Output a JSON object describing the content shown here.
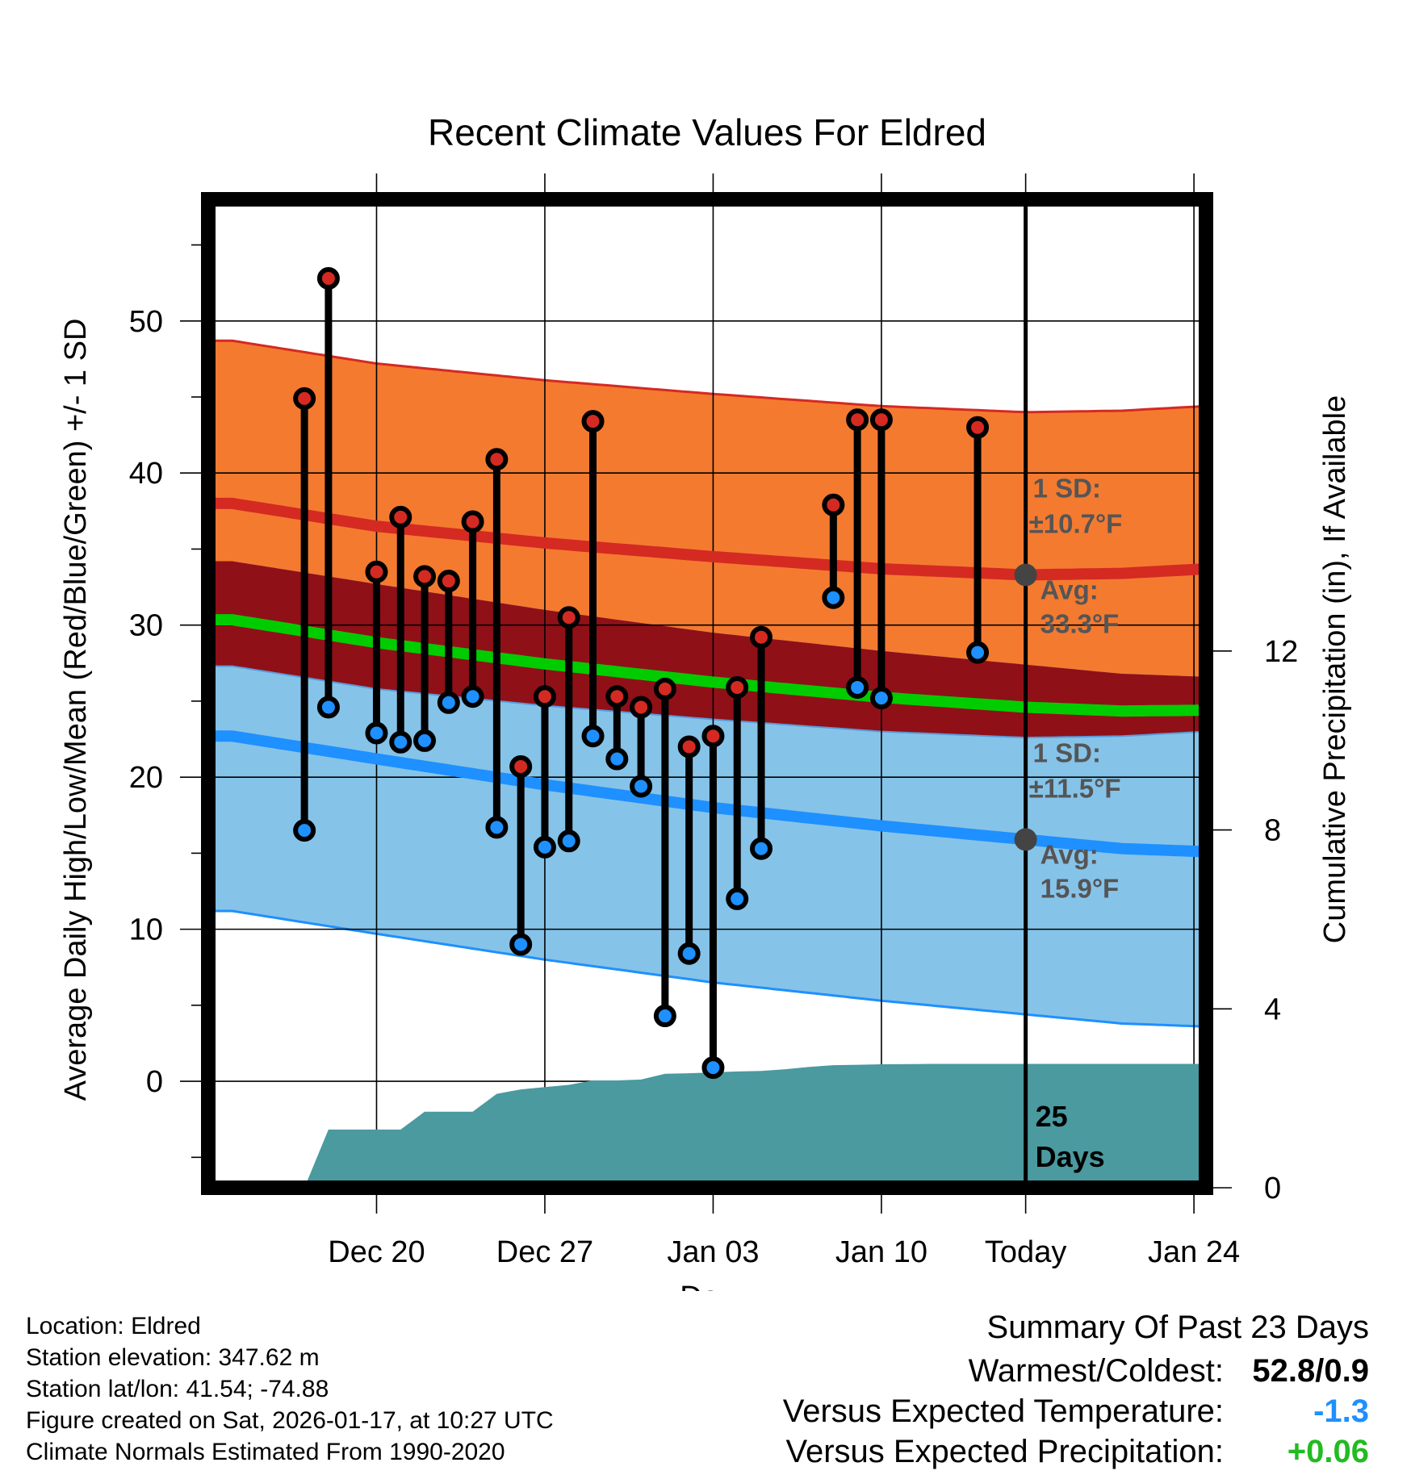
{
  "chart_data": {
    "type": "line",
    "title": "Recent Climate Values For Eldred",
    "xlabel": "Day",
    "ylabel": "Average Daily High/Low/Mean (Red/Blue/Green) +/- 1 SD",
    "ylabel_right": "Cumulative Precipitation (in), If Available",
    "ylim": [
      -7,
      58
    ],
    "ylim_right": [
      0,
      22.1
    ],
    "x_range": [
      -4,
      37.5
    ],
    "today_x": 30,
    "x_tick_positions": [
      3,
      10,
      17,
      24,
      30,
      37
    ],
    "x_tick_labels": [
      "Dec 20",
      "Dec 27",
      "Jan 03",
      "Jan 10",
      "Today",
      "Jan 24"
    ],
    "y_ticks": [
      0,
      10,
      20,
      30,
      40,
      50
    ],
    "y_ticks_right": [
      0,
      4,
      8,
      12
    ],
    "grid": true,
    "colors": {
      "high_band": "#f47a30",
      "high_line": "#d42a22",
      "low_band": "#86c3e8",
      "low_line": "#1e90ff",
      "overlap_band": "#901018",
      "mean_line": "#00cc00",
      "precip": "#4a9aa0",
      "high_dot": "#d42a22",
      "low_dot": "#1e90ff",
      "avg_dot": "#444444",
      "annotation": "#555555",
      "below_expected": "#1e90ff",
      "above_expected": "#22bb22"
    },
    "normals": {
      "x": [
        -3,
        3,
        10,
        17,
        24,
        30,
        34,
        37.5
      ],
      "high_avg": [
        38.0,
        36.5,
        35.4,
        34.5,
        33.7,
        33.3,
        33.4,
        33.7
      ],
      "high_sd": 10.7,
      "low_avg": [
        22.7,
        21.2,
        19.5,
        18.0,
        16.8,
        15.9,
        15.3,
        15.1
      ],
      "low_sd": 11.5
    },
    "observations": {
      "x": [
        0,
        1,
        3,
        4,
        5,
        6,
        7,
        8,
        9,
        10,
        11,
        12,
        13,
        14,
        15,
        16,
        17,
        18,
        19,
        22,
        23,
        24,
        28
      ],
      "high": [
        44.9,
        52.8,
        33.5,
        37.1,
        33.2,
        32.9,
        36.8,
        40.9,
        20.7,
        25.3,
        30.5,
        43.4,
        25.3,
        24.6,
        25.8,
        22.0,
        22.7,
        25.9,
        29.2,
        37.9,
        43.5,
        43.5,
        43.0
      ],
      "low": [
        16.5,
        24.6,
        22.9,
        22.3,
        22.4,
        24.9,
        25.3,
        16.7,
        9.0,
        15.4,
        15.8,
        22.7,
        21.2,
        19.4,
        4.3,
        8.4,
        0.9,
        12.0,
        15.3,
        31.8,
        25.9,
        25.2,
        28.2
      ]
    },
    "precip_cumulative": {
      "x": [
        -1,
        0,
        1,
        2,
        3,
        4,
        5,
        6,
        7,
        8,
        9,
        10,
        11,
        12,
        13,
        14,
        15,
        16,
        17,
        18,
        19,
        20,
        21,
        22,
        23,
        24,
        26,
        28,
        30,
        37.5
      ],
      "values": [
        0,
        0,
        1.3,
        1.3,
        1.3,
        1.3,
        1.7,
        1.7,
        1.7,
        2.1,
        2.2,
        2.25,
        2.3,
        2.4,
        2.4,
        2.42,
        2.55,
        2.56,
        2.58,
        2.6,
        2.61,
        2.65,
        2.7,
        2.74,
        2.75,
        2.76,
        2.77,
        2.77,
        2.77,
        2.77
      ]
    },
    "annotations": {
      "high_sd_label": "1 SD:",
      "high_sd_value": "±10.7°F",
      "high_avg_label": "Avg:",
      "high_avg_value": "33.3°F",
      "high_avg": 33.3,
      "low_sd_label": "1 SD:",
      "low_sd_value": "±11.5°F",
      "low_avg_label": "Avg:",
      "low_avg_value": "15.9°F",
      "low_avg": 15.9,
      "days_number": "25",
      "days_label": "Days"
    }
  },
  "footer": {
    "location": "Location: Eldred",
    "elevation": "Station elevation: 347.62 m",
    "latlon": "Station lat/lon: 41.54; -74.88",
    "created": "Figure created on Sat, 2026-01-17, at 10:27 UTC",
    "normals": "Climate Normals Estimated From 1990-2020"
  },
  "summary": {
    "title": "Summary Of Past 23 Days",
    "warmest_label": "Warmest/Coldest:",
    "warmest_value": "52.8/0.9",
    "temp_label": "Versus Expected Temperature:",
    "temp_value": "-1.3",
    "precip_label": "Versus Expected Precipitation:",
    "precip_value": "+0.06"
  }
}
